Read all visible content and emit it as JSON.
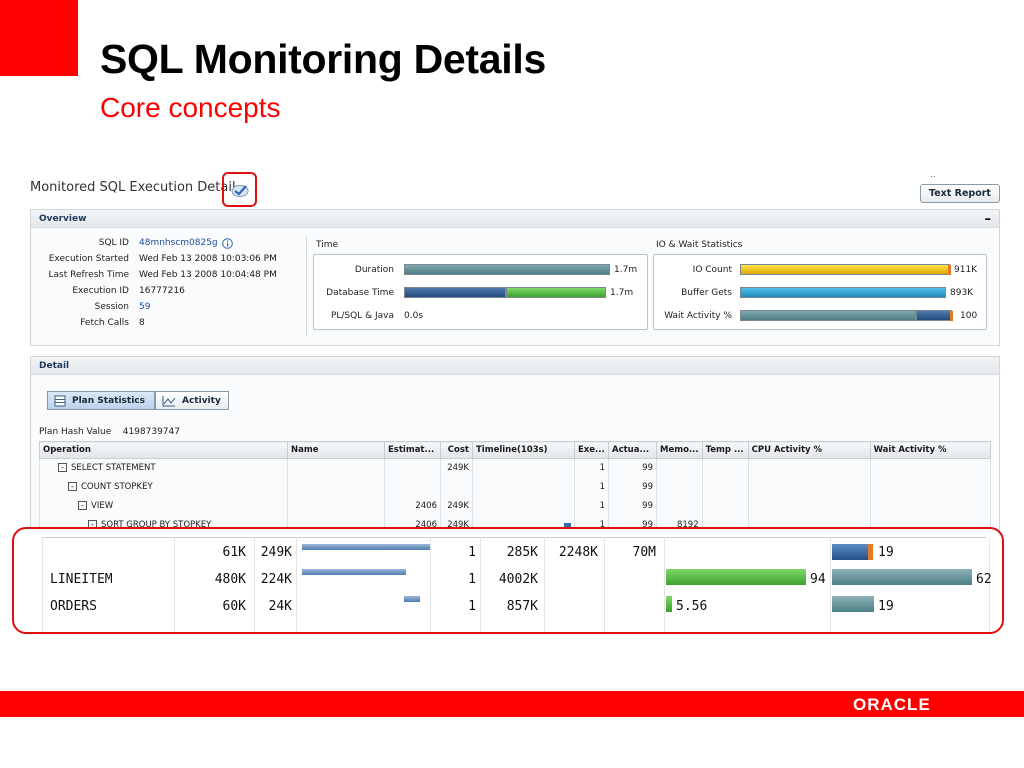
{
  "slide": {
    "title": "SQL Monitoring Details",
    "subtitle": "Core concepts"
  },
  "app": {
    "title": "Monitored SQL Execution Detail",
    "text_report_label": "Text Report",
    "dots": ".."
  },
  "overview": {
    "heading": "Overview",
    "collapse": "–",
    "fields": [
      {
        "label": "SQL ID",
        "value": "48mnhscm0825g"
      },
      {
        "label": "Execution Started",
        "value": "Wed Feb 13 2008 10:03:06 PM"
      },
      {
        "label": "Last Refresh Time",
        "value": "Wed Feb 13 2008 10:04:48 PM"
      },
      {
        "label": "Execution ID",
        "value": "16777216"
      },
      {
        "label": "Session",
        "value": "59"
      },
      {
        "label": "Fetch Calls",
        "value": "8"
      }
    ],
    "time": {
      "heading": "Time",
      "rows": [
        {
          "label": "Duration",
          "value": "1.7m"
        },
        {
          "label": "Database Time",
          "value": "1.7m"
        },
        {
          "label": "PL/SQL & Java",
          "value": "0.0s"
        }
      ]
    },
    "io": {
      "heading": "IO & Wait Statistics",
      "rows": [
        {
          "label": "IO Count",
          "value": "911K"
        },
        {
          "label": "Buffer Gets",
          "value": "893K"
        },
        {
          "label": "Wait Activity %",
          "value": "100"
        }
      ]
    }
  },
  "detail": {
    "heading": "Detail",
    "tabs": [
      {
        "label": "Plan Statistics"
      },
      {
        "label": "Activity"
      }
    ],
    "plan_hash_label": "Plan Hash Value",
    "plan_hash_value": "4198739747",
    "columns": [
      "Operation",
      "Name",
      "Estimat...",
      "Cost",
      "Timeline(103s)",
      "Exe...",
      "Actua...",
      "Memo...",
      "Temp ...",
      "CPU Activity %",
      "Wait Activity %"
    ],
    "rows": [
      {
        "op": "SELECT STATEMENT",
        "name": "",
        "est": "",
        "cost": "249K",
        "exe": "1",
        "act": "99",
        "mem": ""
      },
      {
        "op": "COUNT STOPKEY",
        "name": "",
        "est": "",
        "cost": "",
        "exe": "1",
        "act": "99",
        "mem": ""
      },
      {
        "op": "VIEW",
        "name": "",
        "est": "2406",
        "cost": "249K",
        "exe": "1",
        "act": "99",
        "mem": ""
      },
      {
        "op": "SORT GROUP BY STOPKEY",
        "name": "",
        "est": "2406",
        "cost": "249K",
        "exe": "1",
        "act": "99",
        "mem": "8192"
      }
    ]
  },
  "zoom": {
    "rows": [
      {
        "name": "",
        "est": "61K",
        "cost": "249K",
        "exe": "1",
        "act": "285K",
        "mem": "2248K",
        "temp": "70M",
        "cpu": "",
        "wait": "19"
      },
      {
        "name": "LINEITEM",
        "est": "480K",
        "cost": "224K",
        "exe": "1",
        "act": "4002K",
        "mem": "",
        "temp": "",
        "cpu": "94",
        "wait": "62"
      },
      {
        "name": "ORDERS",
        "est": "60K",
        "cost": "24K",
        "exe": "1",
        "act": "857K",
        "mem": "",
        "temp": "",
        "cpu": "5.56",
        "wait": "19"
      }
    ]
  },
  "footer": {
    "brand": "ORACLE"
  }
}
